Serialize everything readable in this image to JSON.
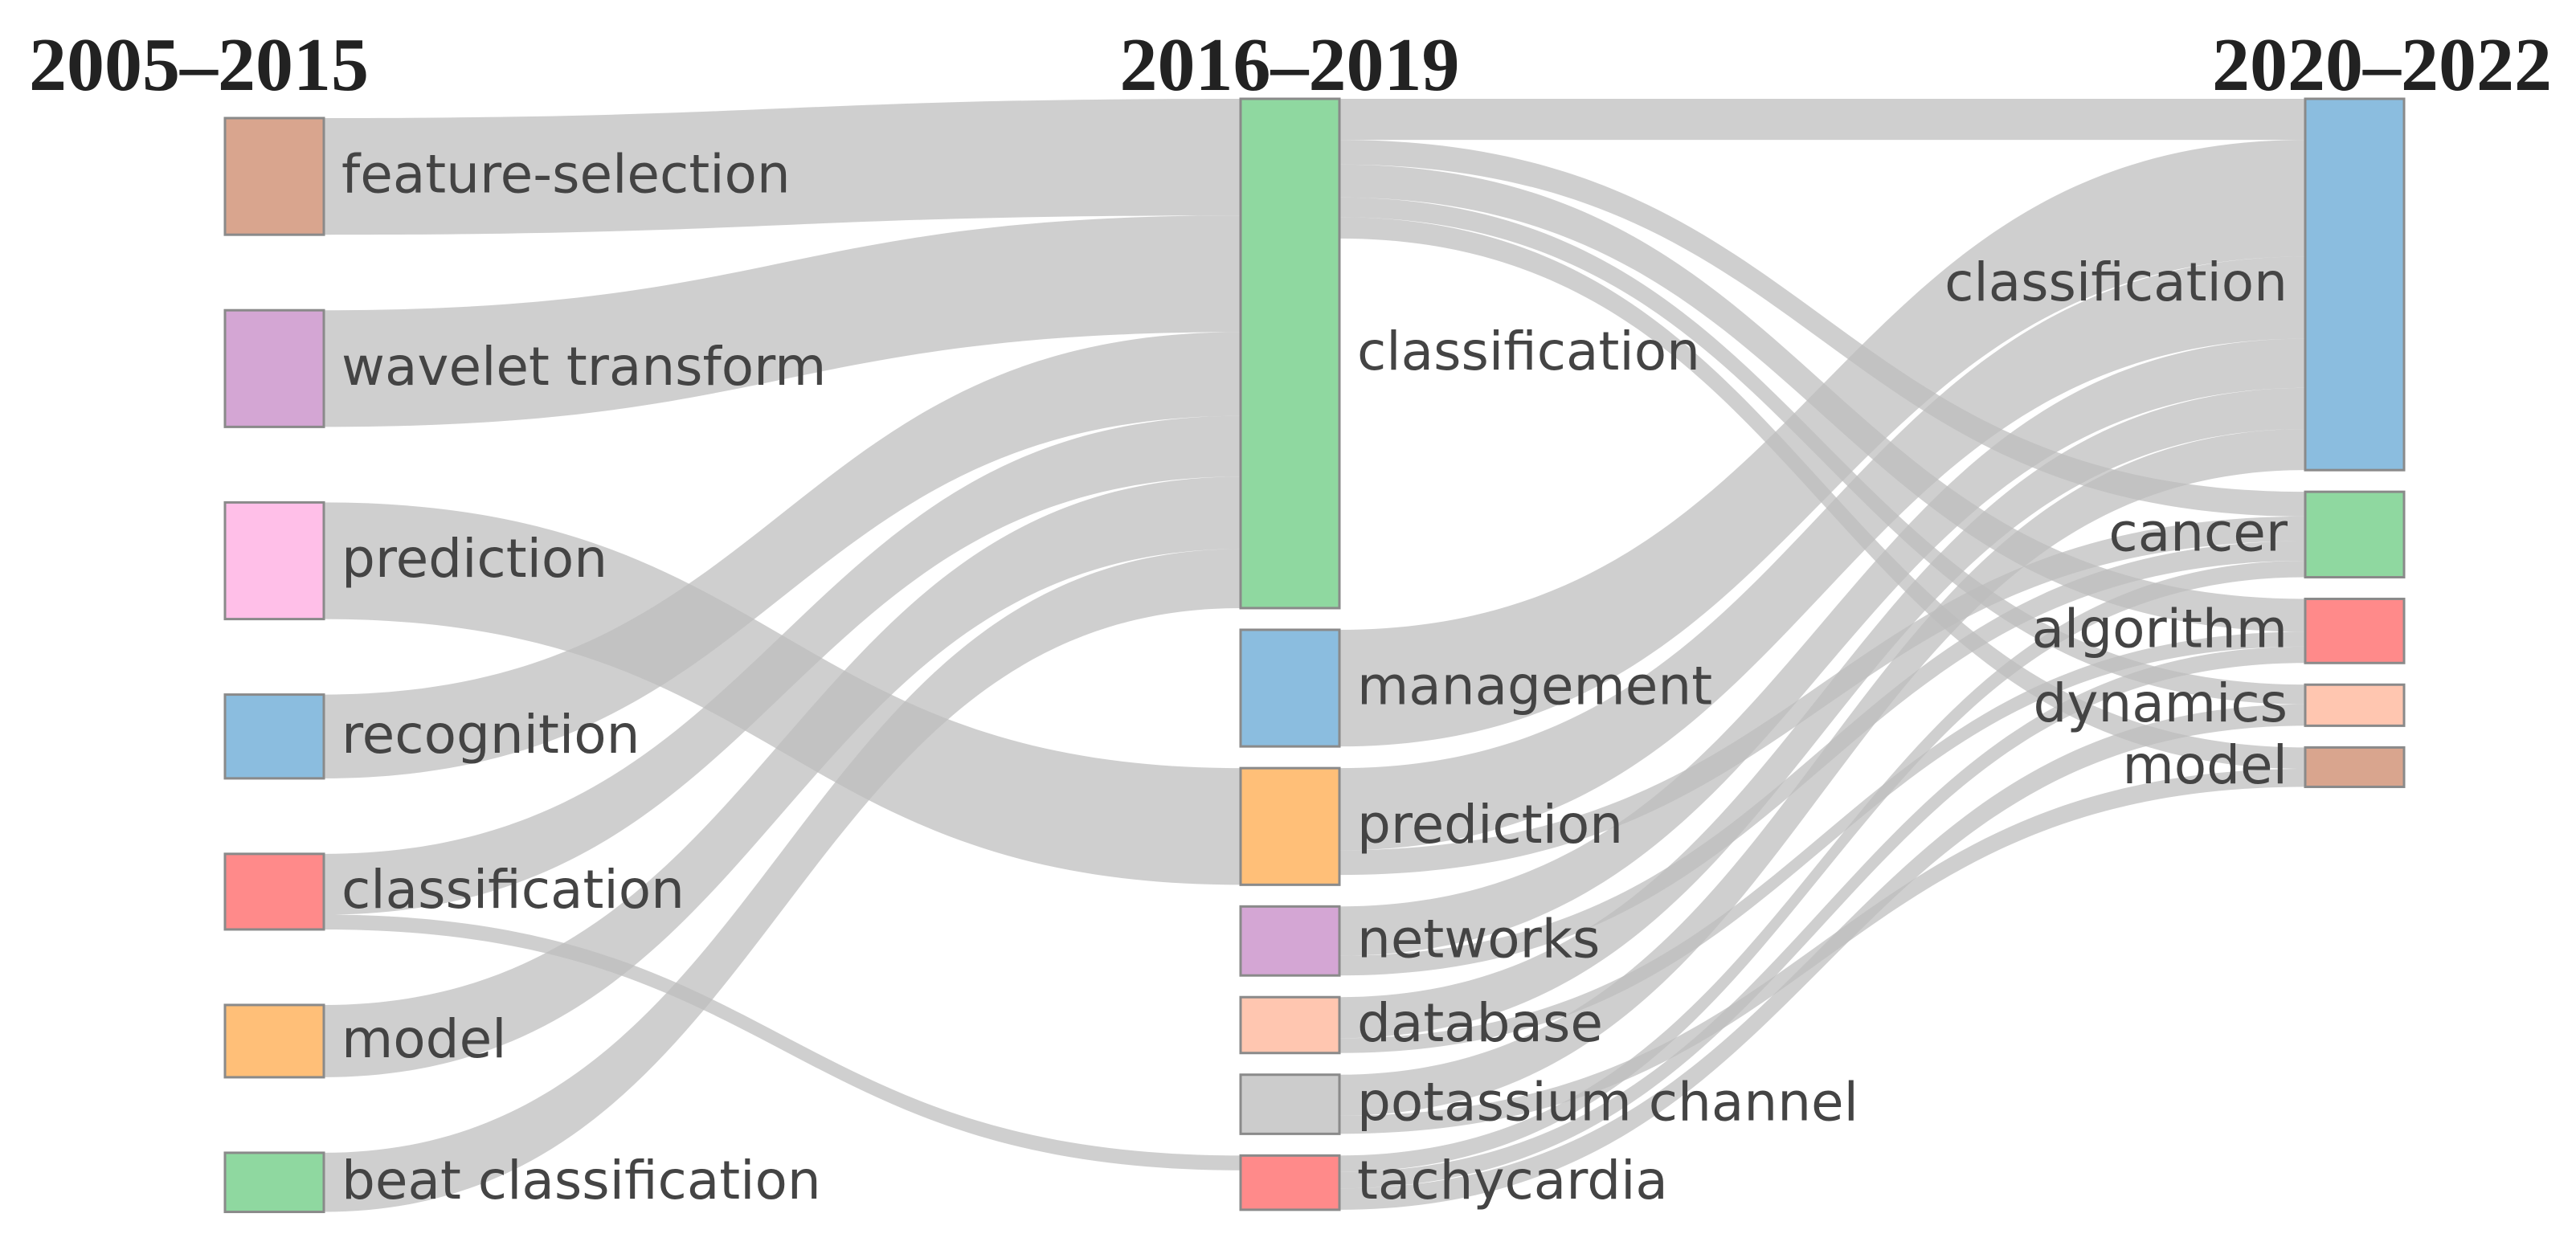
{
  "chart_data": {
    "type": "sankey",
    "columns": [
      {
        "title": "2005–2015"
      },
      {
        "title": "2016–2019"
      },
      {
        "title": "2020–2022"
      }
    ],
    "link_color": "#bdbdbd",
    "nodes": [
      {
        "label": "feature-selection",
        "column": 0,
        "color": "#d9a58e"
      },
      {
        "label": "wavelet transform",
        "column": 0,
        "color": "#d4a6d4"
      },
      {
        "label": "prediction",
        "column": 0,
        "color": "#ffbfe8"
      },
      {
        "label": "recognition",
        "column": 0,
        "color": "#8bbddf"
      },
      {
        "label": "classification",
        "column": 0,
        "color": "#ff8a8a"
      },
      {
        "label": "model",
        "column": 0,
        "color": "#ffbf78"
      },
      {
        "label": "beat classification",
        "column": 0,
        "color": "#8fd8a0"
      },
      {
        "label": "classification",
        "column": 1,
        "color": "#8fd8a0"
      },
      {
        "label": "management",
        "column": 1,
        "color": "#8bbddf"
      },
      {
        "label": "prediction",
        "column": 1,
        "color": "#ffbf78"
      },
      {
        "label": "networks",
        "column": 1,
        "color": "#d4a6d4"
      },
      {
        "label": "database",
        "column": 1,
        "color": "#ffc6b0"
      },
      {
        "label": "potassium channel",
        "column": 1,
        "color": "#cccccc"
      },
      {
        "label": "tachycardia",
        "column": 1,
        "color": "#ff8a8a"
      },
      {
        "label": "classification",
        "column": 2,
        "color": "#8bbddf"
      },
      {
        "label": "cancer",
        "column": 2,
        "color": "#8fd8a0"
      },
      {
        "label": "algorithm",
        "column": 2,
        "color": "#ff8a8a"
      },
      {
        "label": "dynamics",
        "column": 2,
        "color": "#ffc6b0"
      },
      {
        "label": "model",
        "column": 2,
        "color": "#d9a58e"
      }
    ],
    "links": [
      {
        "source": 0,
        "target": 7,
        "value": 71
      },
      {
        "source": 1,
        "target": 7,
        "value": 71
      },
      {
        "source": 2,
        "target": 9,
        "value": 71
      },
      {
        "source": 3,
        "target": 7,
        "value": 51
      },
      {
        "source": 4,
        "target": 7,
        "value": 37
      },
      {
        "source": 4,
        "target": 13,
        "value": 9
      },
      {
        "source": 5,
        "target": 7,
        "value": 44
      },
      {
        "source": 6,
        "target": 7,
        "value": 36
      },
      {
        "source": 7,
        "target": 14,
        "value": 25
      },
      {
        "source": 7,
        "target": 15,
        "value": 15
      },
      {
        "source": 7,
        "target": 16,
        "value": 20
      },
      {
        "source": 7,
        "target": 17,
        "value": 12
      },
      {
        "source": 7,
        "target": 18,
        "value": 13
      },
      {
        "source": 8,
        "target": 14,
        "value": 71
      },
      {
        "source": 9,
        "target": 14,
        "value": 50
      },
      {
        "source": 9,
        "target": 15,
        "value": 15
      },
      {
        "source": 10,
        "target": 14,
        "value": 30
      },
      {
        "source": 10,
        "target": 15,
        "value": 12
      },
      {
        "source": 11,
        "target": 14,
        "value": 25
      },
      {
        "source": 11,
        "target": 16,
        "value": 9
      },
      {
        "source": 12,
        "target": 14,
        "value": 25
      },
      {
        "source": 12,
        "target": 18,
        "value": 11
      },
      {
        "source": 13,
        "target": 15,
        "value": 10
      },
      {
        "source": 13,
        "target": 16,
        "value": 10
      },
      {
        "source": 13,
        "target": 17,
        "value": 13
      }
    ]
  }
}
